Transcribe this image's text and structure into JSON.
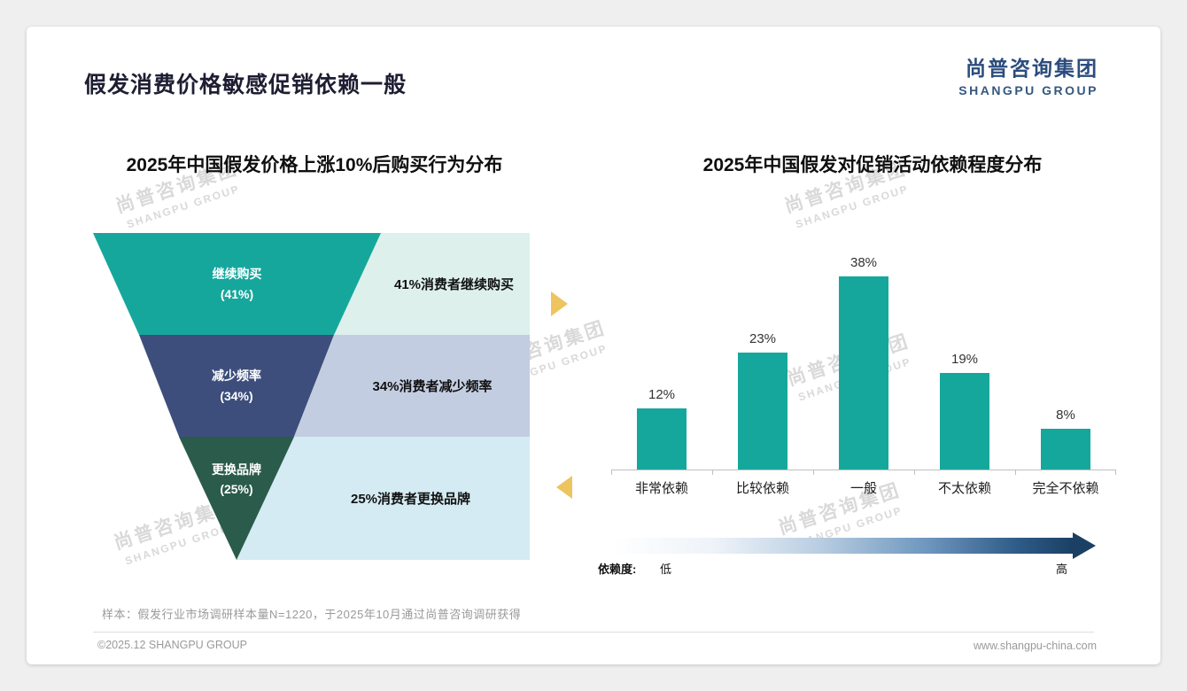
{
  "header": {
    "title": "假发消费价格敏感促销依赖一般"
  },
  "logo": {
    "cn": "尚普咨询集团",
    "en": "SHANGPU GROUP"
  },
  "watermark": {
    "cn": "尚普咨询集团",
    "en": "SHANGPU GROUP"
  },
  "funnel_chart": {
    "title": "2025年中国假发价格上涨10%后购买行为分布",
    "stages": [
      {
        "label": "继续购买",
        "pct": "(41%)",
        "desc": "41%消费者继续购买"
      },
      {
        "label": "减少频率",
        "pct": "(34%)",
        "desc": "34%消费者减少频率"
      },
      {
        "label": "更换品牌",
        "pct": "(25%)",
        "desc": "25%消费者更换品牌"
      }
    ],
    "colors": {
      "stage1": "#16a79c",
      "stage2": "#3d4e7c",
      "stage3": "#2a5b4b",
      "desc1_bg": "#ddf0ec",
      "desc2_bg": "#c3cde1",
      "desc3_bg": "#d4ebf3",
      "side_arrow": "#eec45f"
    }
  },
  "bar_chart": {
    "title": "2025年中国假发对促销活动依赖程度分布",
    "categories": [
      "非常依赖",
      "比较依赖",
      "一般",
      "不太依赖",
      "完全不依赖"
    ],
    "values": [
      12,
      23,
      38,
      19,
      8
    ],
    "value_labels": [
      "12%",
      "23%",
      "38%",
      "19%",
      "8%"
    ],
    "bar_color": "#16a79c",
    "axis_label": "依赖度:",
    "low_label": "低",
    "high_label": "高",
    "arrow_gradient_end": "#1b4064"
  },
  "footnote": "样本：假发行业市场调研样本量N=1220，于2025年10月通过尚普咨询调研获得",
  "footer": {
    "left": "©2025.12 SHANGPU GROUP",
    "right": "www.shangpu-china.com"
  },
  "chart_data": [
    {
      "type": "funnel",
      "title": "2025年中国假发价格上涨10%后购买行为分布",
      "categories": [
        "继续购买",
        "减少频率",
        "更换品牌"
      ],
      "values": [
        41,
        34,
        25
      ],
      "unit": "%",
      "annotations": [
        "41%消费者继续购买",
        "34%消费者减少频率",
        "25%消费者更换品牌"
      ],
      "legend_position": "none",
      "grid": false
    },
    {
      "type": "bar",
      "title": "2025年中国假发对促销活动依赖程度分布",
      "categories": [
        "非常依赖",
        "比较依赖",
        "一般",
        "不太依赖",
        "完全不依赖"
      ],
      "values": [
        12,
        23,
        38,
        19,
        8
      ],
      "unit": "%",
      "ylim": [
        0,
        40
      ],
      "xlabel": "依赖度: 低 → 高",
      "ylabel": "",
      "grid": false,
      "legend_position": "none"
    }
  ]
}
